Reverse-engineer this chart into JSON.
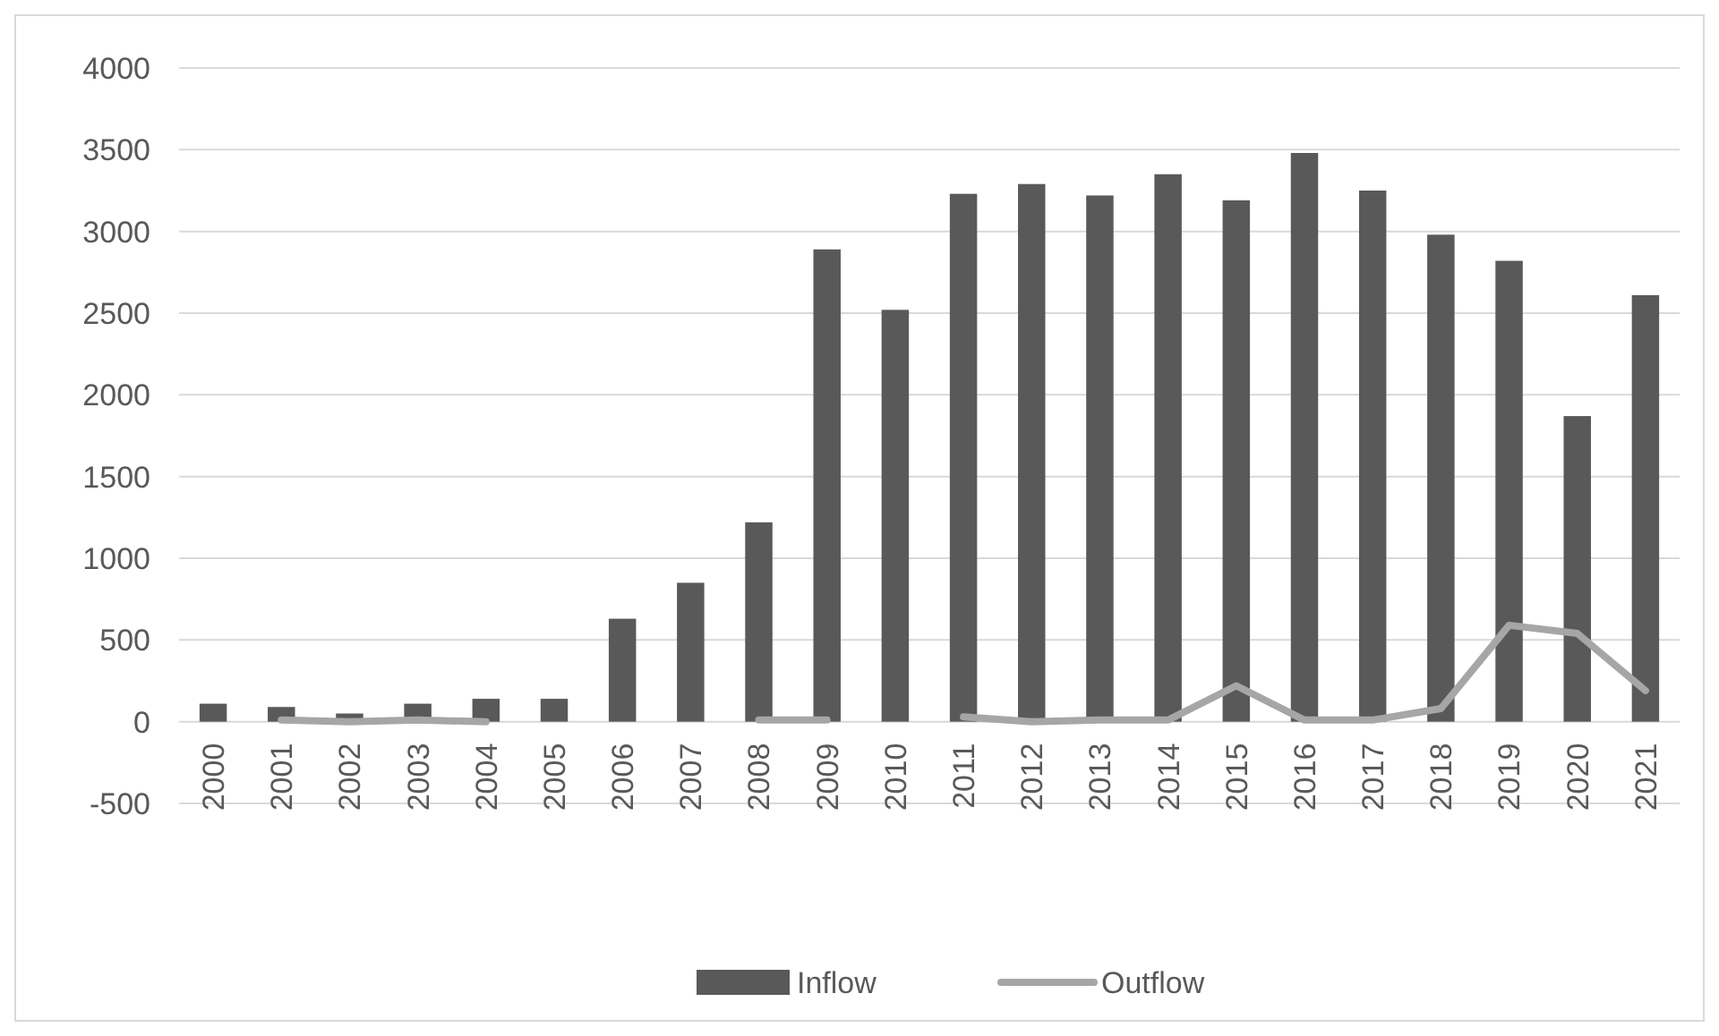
{
  "chart_data": {
    "type": "bar",
    "categories": [
      "2000",
      "2001",
      "2002",
      "2003",
      "2004",
      "2005",
      "2006",
      "2007",
      "2008",
      "2009",
      "2010",
      "2011",
      "2012",
      "2013",
      "2014",
      "2015",
      "2016",
      "2017",
      "2018",
      "2019",
      "2020",
      "2021"
    ],
    "series": [
      {
        "name": "Inflow",
        "color": "#595959",
        "values": [
          110,
          90,
          50,
          110,
          140,
          140,
          630,
          850,
          1220,
          2890,
          2520,
          3230,
          3290,
          3220,
          3350,
          3190,
          3480,
          3250,
          2980,
          2820,
          1870,
          2610
        ]
      },
      {
        "name": "Outflow",
        "type": "line",
        "color": "#a6a6a6",
        "values": [
          null,
          10,
          0,
          10,
          0,
          null,
          null,
          null,
          10,
          10,
          null,
          30,
          0,
          10,
          10,
          220,
          10,
          10,
          80,
          590,
          540,
          190
        ]
      }
    ],
    "ylim": [
      -500,
      4000
    ],
    "yticks": [
      -500,
      0,
      500,
      1000,
      1500,
      2000,
      2500,
      3000,
      3500,
      4000
    ],
    "grid": "y",
    "legend": "bottom",
    "line_style": "solid"
  }
}
